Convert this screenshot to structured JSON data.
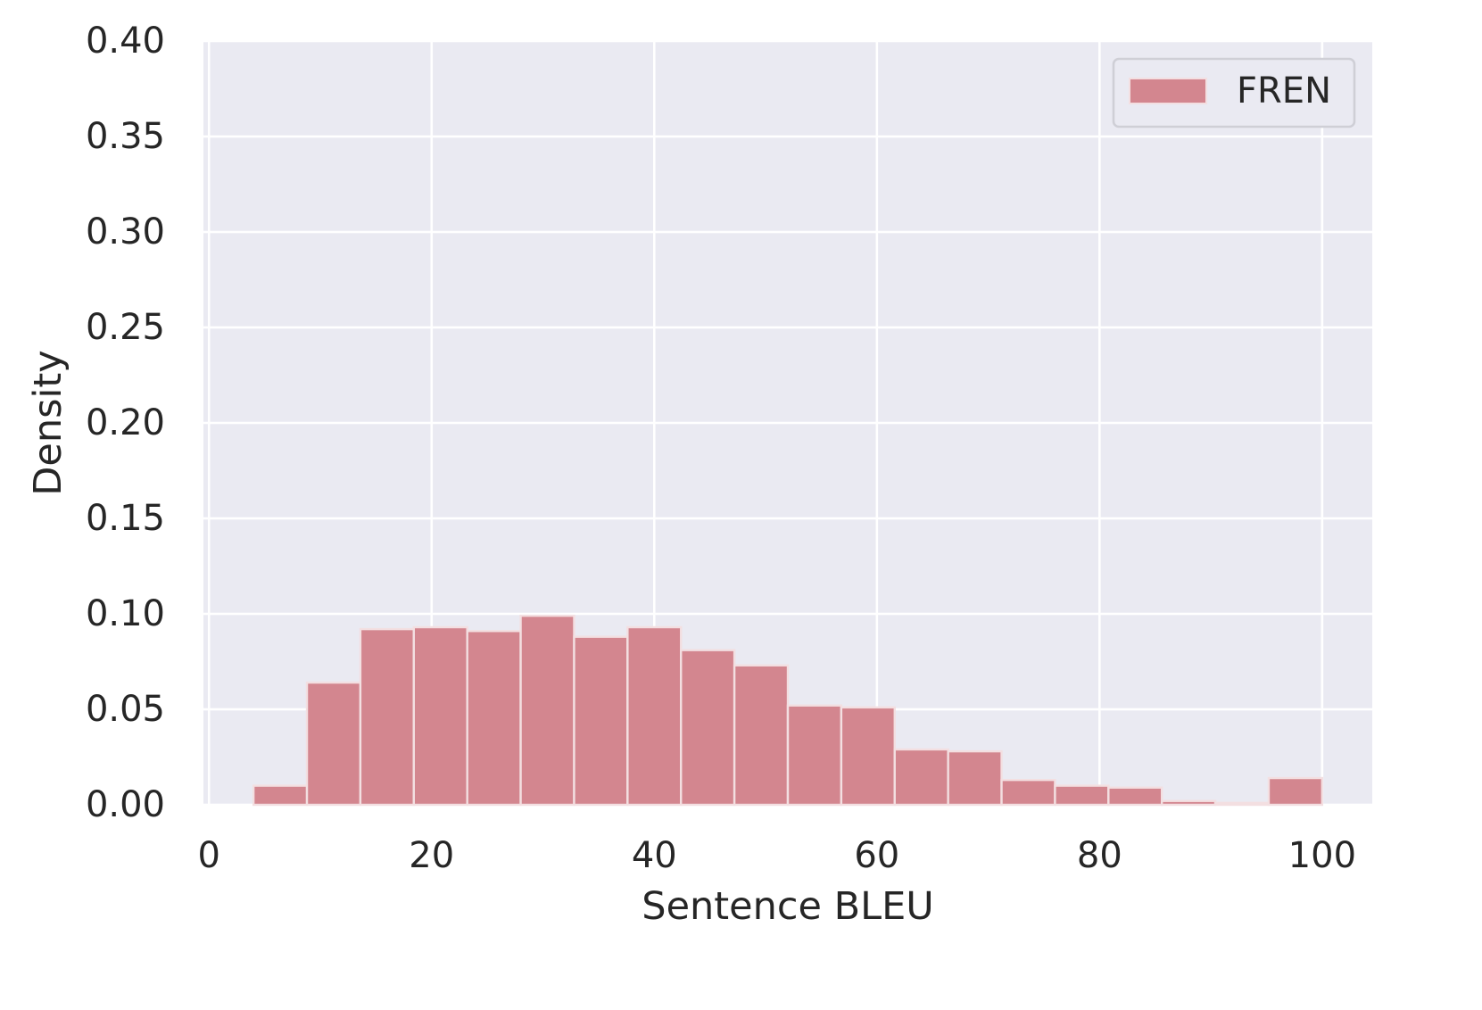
{
  "chart_data": {
    "type": "bar",
    "subtype": "histogram",
    "xlabel": "Sentence BLEU",
    "ylabel": "Density",
    "xlim": [
      -0.5,
      104.5
    ],
    "ylim": [
      0,
      0.4
    ],
    "x_ticks": [
      "0",
      "20",
      "40",
      "60",
      "80",
      "100"
    ],
    "y_ticks": [
      "0.00",
      "0.05",
      "0.10",
      "0.15",
      "0.20",
      "0.25",
      "0.30",
      "0.35",
      "0.40"
    ],
    "grid": true,
    "legend_position": "top-right",
    "series": [
      {
        "name": "FREN",
        "color": "#d3868f",
        "bins": [
          {
            "x0": 4.0,
            "x1": 8.8,
            "value": 0.01
          },
          {
            "x0": 8.8,
            "x1": 13.6,
            "value": 0.064
          },
          {
            "x0": 13.6,
            "x1": 18.4,
            "value": 0.092
          },
          {
            "x0": 18.4,
            "x1": 23.2,
            "value": 0.093
          },
          {
            "x0": 23.2,
            "x1": 28.0,
            "value": 0.091
          },
          {
            "x0": 28.0,
            "x1": 32.8,
            "value": 0.099
          },
          {
            "x0": 32.8,
            "x1": 37.6,
            "value": 0.088
          },
          {
            "x0": 37.6,
            "x1": 42.4,
            "value": 0.093
          },
          {
            "x0": 42.4,
            "x1": 47.2,
            "value": 0.081
          },
          {
            "x0": 47.2,
            "x1": 52.0,
            "value": 0.073
          },
          {
            "x0": 52.0,
            "x1": 56.8,
            "value": 0.052
          },
          {
            "x0": 56.8,
            "x1": 61.6,
            "value": 0.051
          },
          {
            "x0": 61.6,
            "x1": 66.4,
            "value": 0.029
          },
          {
            "x0": 66.4,
            "x1": 71.2,
            "value": 0.028
          },
          {
            "x0": 71.2,
            "x1": 76.0,
            "value": 0.013
          },
          {
            "x0": 76.0,
            "x1": 80.8,
            "value": 0.01
          },
          {
            "x0": 80.8,
            "x1": 85.6,
            "value": 0.009
          },
          {
            "x0": 85.6,
            "x1": 90.4,
            "value": 0.002
          },
          {
            "x0": 90.4,
            "x1": 95.2,
            "value": 0.001
          },
          {
            "x0": 95.2,
            "x1": 100.0,
            "value": 0.014
          }
        ]
      }
    ]
  }
}
